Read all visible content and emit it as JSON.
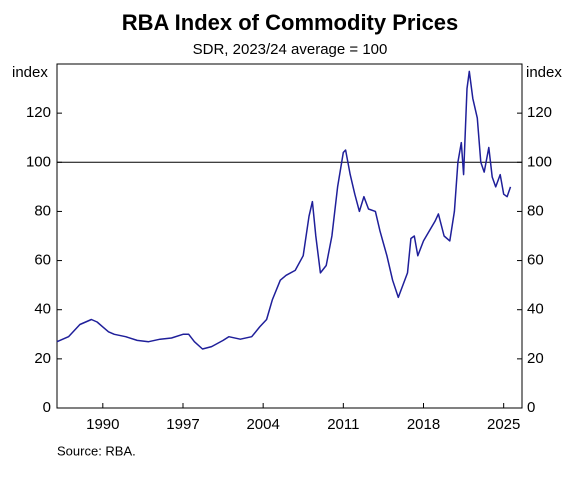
{
  "chart_data": {
    "type": "line",
    "title": "RBA Index of Commodity Prices",
    "subtitle": "SDR, 2023/24 average = 100",
    "y_label": "index",
    "y2_label": "index",
    "source": "Source: RBA.",
    "reference_line": 100,
    "x": [
      1986.0,
      1987,
      1988,
      1989,
      1989.5,
      1990,
      1990.5,
      1991,
      1992,
      1993,
      1994,
      1995,
      1996,
      1997,
      1997.5,
      1998,
      1998.7,
      1999.5,
      2000.5,
      2001,
      2002,
      2003,
      2003.7,
      2004.3,
      2004.8,
      2005.5,
      2006,
      2006.8,
      2007.5,
      2008.0,
      2008.3,
      2008.6,
      2009,
      2009.5,
      2010,
      2010.5,
      2011.0,
      2011.2,
      2011.6,
      2012,
      2012.4,
      2012.8,
      2013.2,
      2013.8,
      2014.2,
      2014.8,
      2015.3,
      2015.8,
      2016.2,
      2016.6,
      2016.9,
      2017.2,
      2017.5,
      2018,
      2018.5,
      2019,
      2019.3,
      2019.8,
      2020.3,
      2020.7,
      2021.0,
      2021.3,
      2021.5,
      2021.8,
      2022.0,
      2022.3,
      2022.7,
      2023.0,
      2023.3,
      2023.7,
      2024.0,
      2024.3,
      2024.7,
      2025.0,
      2025.3,
      2025.6
    ],
    "series": [
      {
        "name": "RBA Index of Commodity Prices",
        "color": "#1f1f9a",
        "values": [
          27,
          29,
          34,
          36,
          35,
          33,
          31,
          30,
          29,
          27.5,
          27,
          28,
          28.5,
          30,
          30,
          27,
          24,
          25,
          27.5,
          29,
          28,
          29,
          33,
          36,
          44,
          52,
          54,
          56,
          62,
          78,
          84,
          70,
          55,
          58,
          70,
          90,
          104,
          105,
          95,
          87,
          80,
          86,
          81,
          80,
          72,
          62,
          52,
          45,
          50,
          55,
          69,
          70,
          62,
          68,
          72,
          76,
          79,
          70,
          68,
          80,
          100,
          108,
          95,
          130,
          137,
          126,
          118,
          100,
          96,
          106,
          94,
          90,
          95,
          87,
          86,
          90
        ]
      }
    ],
    "xlim": [
      1986,
      2026.6
    ],
    "xticks": [
      1990,
      1997,
      2004,
      2011,
      2018,
      2025
    ],
    "ylim": [
      0,
      140
    ],
    "yticks": [
      0,
      20,
      40,
      60,
      80,
      100,
      120
    ],
    "y2lim": [
      0,
      140
    ],
    "y2ticks": [
      0,
      20,
      40,
      60,
      80,
      100,
      120
    ]
  }
}
